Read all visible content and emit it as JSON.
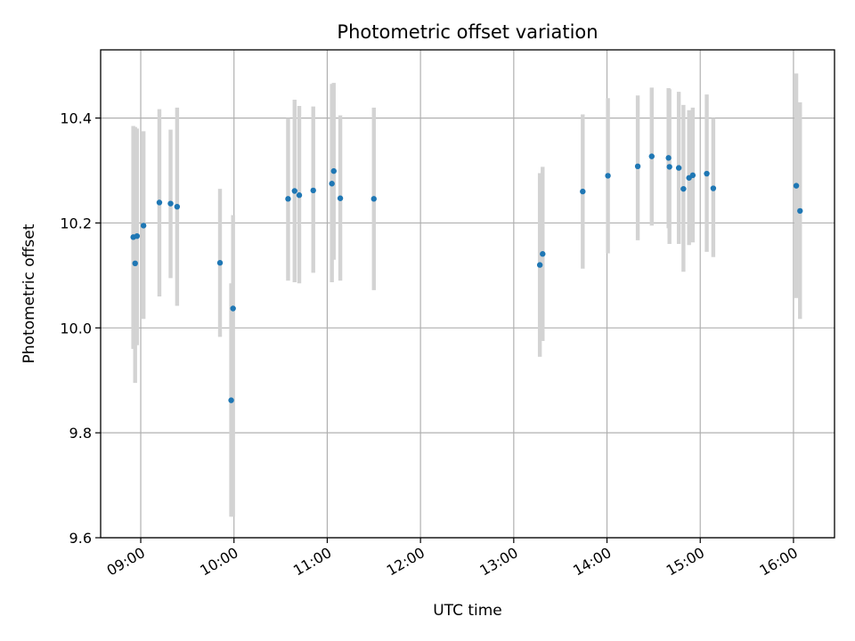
{
  "chart_data": {
    "type": "scatter",
    "title": "Photometric offset variation",
    "xlabel": "UTC time",
    "ylabel": "Photometric offset",
    "x_unit": "hours UTC",
    "xlim": [
      8.57,
      16.44
    ],
    "ylim": [
      9.6,
      10.53
    ],
    "x_ticks": [
      {
        "value": 9,
        "label": "09:00"
      },
      {
        "value": 10,
        "label": "10:00"
      },
      {
        "value": 11,
        "label": "11:00"
      },
      {
        "value": 12,
        "label": "12:00"
      },
      {
        "value": 13,
        "label": "13:00"
      },
      {
        "value": 14,
        "label": "14:00"
      },
      {
        "value": 15,
        "label": "15:00"
      },
      {
        "value": 16,
        "label": "16:00"
      }
    ],
    "y_ticks": [
      {
        "value": 9.6,
        "label": "9.6"
      },
      {
        "value": 9.8,
        "label": "9.8"
      },
      {
        "value": 10.0,
        "label": "10.0"
      },
      {
        "value": 10.2,
        "label": "10.2"
      },
      {
        "value": 10.4,
        "label": "10.4"
      }
    ],
    "grid": true,
    "point_color": "#1f77b4",
    "errorbar_color": "#d3d3d3",
    "points": [
      {
        "x": 8.92,
        "y": 10.173,
        "lo": 9.96,
        "hi": 10.385
      },
      {
        "x": 8.94,
        "y": 10.123,
        "lo": 9.895,
        "hi": 10.383
      },
      {
        "x": 8.96,
        "y": 10.175,
        "lo": 9.967,
        "hi": 10.38
      },
      {
        "x": 9.03,
        "y": 10.195,
        "lo": 10.017,
        "hi": 10.375
      },
      {
        "x": 9.2,
        "y": 10.239,
        "lo": 10.06,
        "hi": 10.417
      },
      {
        "x": 9.32,
        "y": 10.237,
        "lo": 10.095,
        "hi": 10.378
      },
      {
        "x": 9.39,
        "y": 10.231,
        "lo": 10.042,
        "hi": 10.42
      },
      {
        "x": 9.85,
        "y": 10.124,
        "lo": 9.983,
        "hi": 10.265
      },
      {
        "x": 9.97,
        "y": 9.862,
        "lo": 9.64,
        "hi": 10.085
      },
      {
        "x": 9.99,
        "y": 10.037,
        "lo": 9.64,
        "hi": 10.215
      },
      {
        "x": 10.58,
        "y": 10.246,
        "lo": 10.09,
        "hi": 10.4
      },
      {
        "x": 10.65,
        "y": 10.261,
        "lo": 10.087,
        "hi": 10.435
      },
      {
        "x": 10.7,
        "y": 10.253,
        "lo": 10.085,
        "hi": 10.423
      },
      {
        "x": 10.85,
        "y": 10.262,
        "lo": 10.105,
        "hi": 10.422
      },
      {
        "x": 11.05,
        "y": 10.275,
        "lo": 10.087,
        "hi": 10.465
      },
      {
        "x": 11.07,
        "y": 10.299,
        "lo": 10.13,
        "hi": 10.467
      },
      {
        "x": 11.14,
        "y": 10.247,
        "lo": 10.09,
        "hi": 10.405
      },
      {
        "x": 11.5,
        "y": 10.246,
        "lo": 10.072,
        "hi": 10.42
      },
      {
        "x": 13.28,
        "y": 10.12,
        "lo": 9.945,
        "hi": 10.295
      },
      {
        "x": 13.31,
        "y": 10.141,
        "lo": 9.975,
        "hi": 10.307
      },
      {
        "x": 13.74,
        "y": 10.26,
        "lo": 10.113,
        "hi": 10.407
      },
      {
        "x": 14.01,
        "y": 10.29,
        "lo": 10.142,
        "hi": 10.438
      },
      {
        "x": 14.33,
        "y": 10.308,
        "lo": 10.167,
        "hi": 10.443
      },
      {
        "x": 14.48,
        "y": 10.327,
        "lo": 10.195,
        "hi": 10.458
      },
      {
        "x": 14.66,
        "y": 10.324,
        "lo": 10.19,
        "hi": 10.457
      },
      {
        "x": 14.67,
        "y": 10.307,
        "lo": 10.16,
        "hi": 10.455
      },
      {
        "x": 14.77,
        "y": 10.305,
        "lo": 10.16,
        "hi": 10.45
      },
      {
        "x": 14.82,
        "y": 10.265,
        "lo": 10.107,
        "hi": 10.425
      },
      {
        "x": 14.88,
        "y": 10.286,
        "lo": 10.158,
        "hi": 10.415
      },
      {
        "x": 14.92,
        "y": 10.291,
        "lo": 10.163,
        "hi": 10.42
      },
      {
        "x": 15.07,
        "y": 10.294,
        "lo": 10.145,
        "hi": 10.445
      },
      {
        "x": 15.14,
        "y": 10.266,
        "lo": 10.135,
        "hi": 10.4
      },
      {
        "x": 16.03,
        "y": 10.271,
        "lo": 10.057,
        "hi": 10.485
      },
      {
        "x": 16.07,
        "y": 10.223,
        "lo": 10.017,
        "hi": 10.43
      }
    ]
  }
}
